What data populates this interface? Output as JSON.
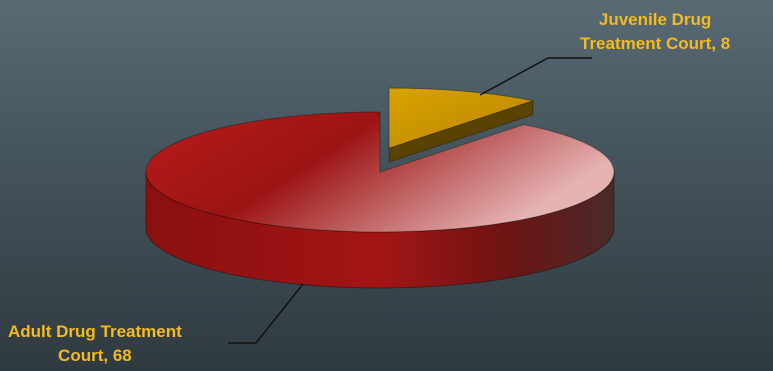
{
  "chart_data": {
    "type": "pie",
    "style": "3d-exploded",
    "slices": [
      {
        "label_lines": [
          "Adult Drug Treatment",
          "Court, 68"
        ],
        "name": "Adult Drug Treatment Court",
        "value": 68,
        "color": "#b21c1c"
      },
      {
        "label_lines": [
          "Juvenile Drug",
          "Treatment Court, 8"
        ],
        "name": "Juvenile Drug Treatment Court",
        "value": 8,
        "color": "#d19a00"
      }
    ],
    "label_color": "#f5ba1c",
    "background": [
      "#586a74",
      "#2f3a40"
    ]
  }
}
